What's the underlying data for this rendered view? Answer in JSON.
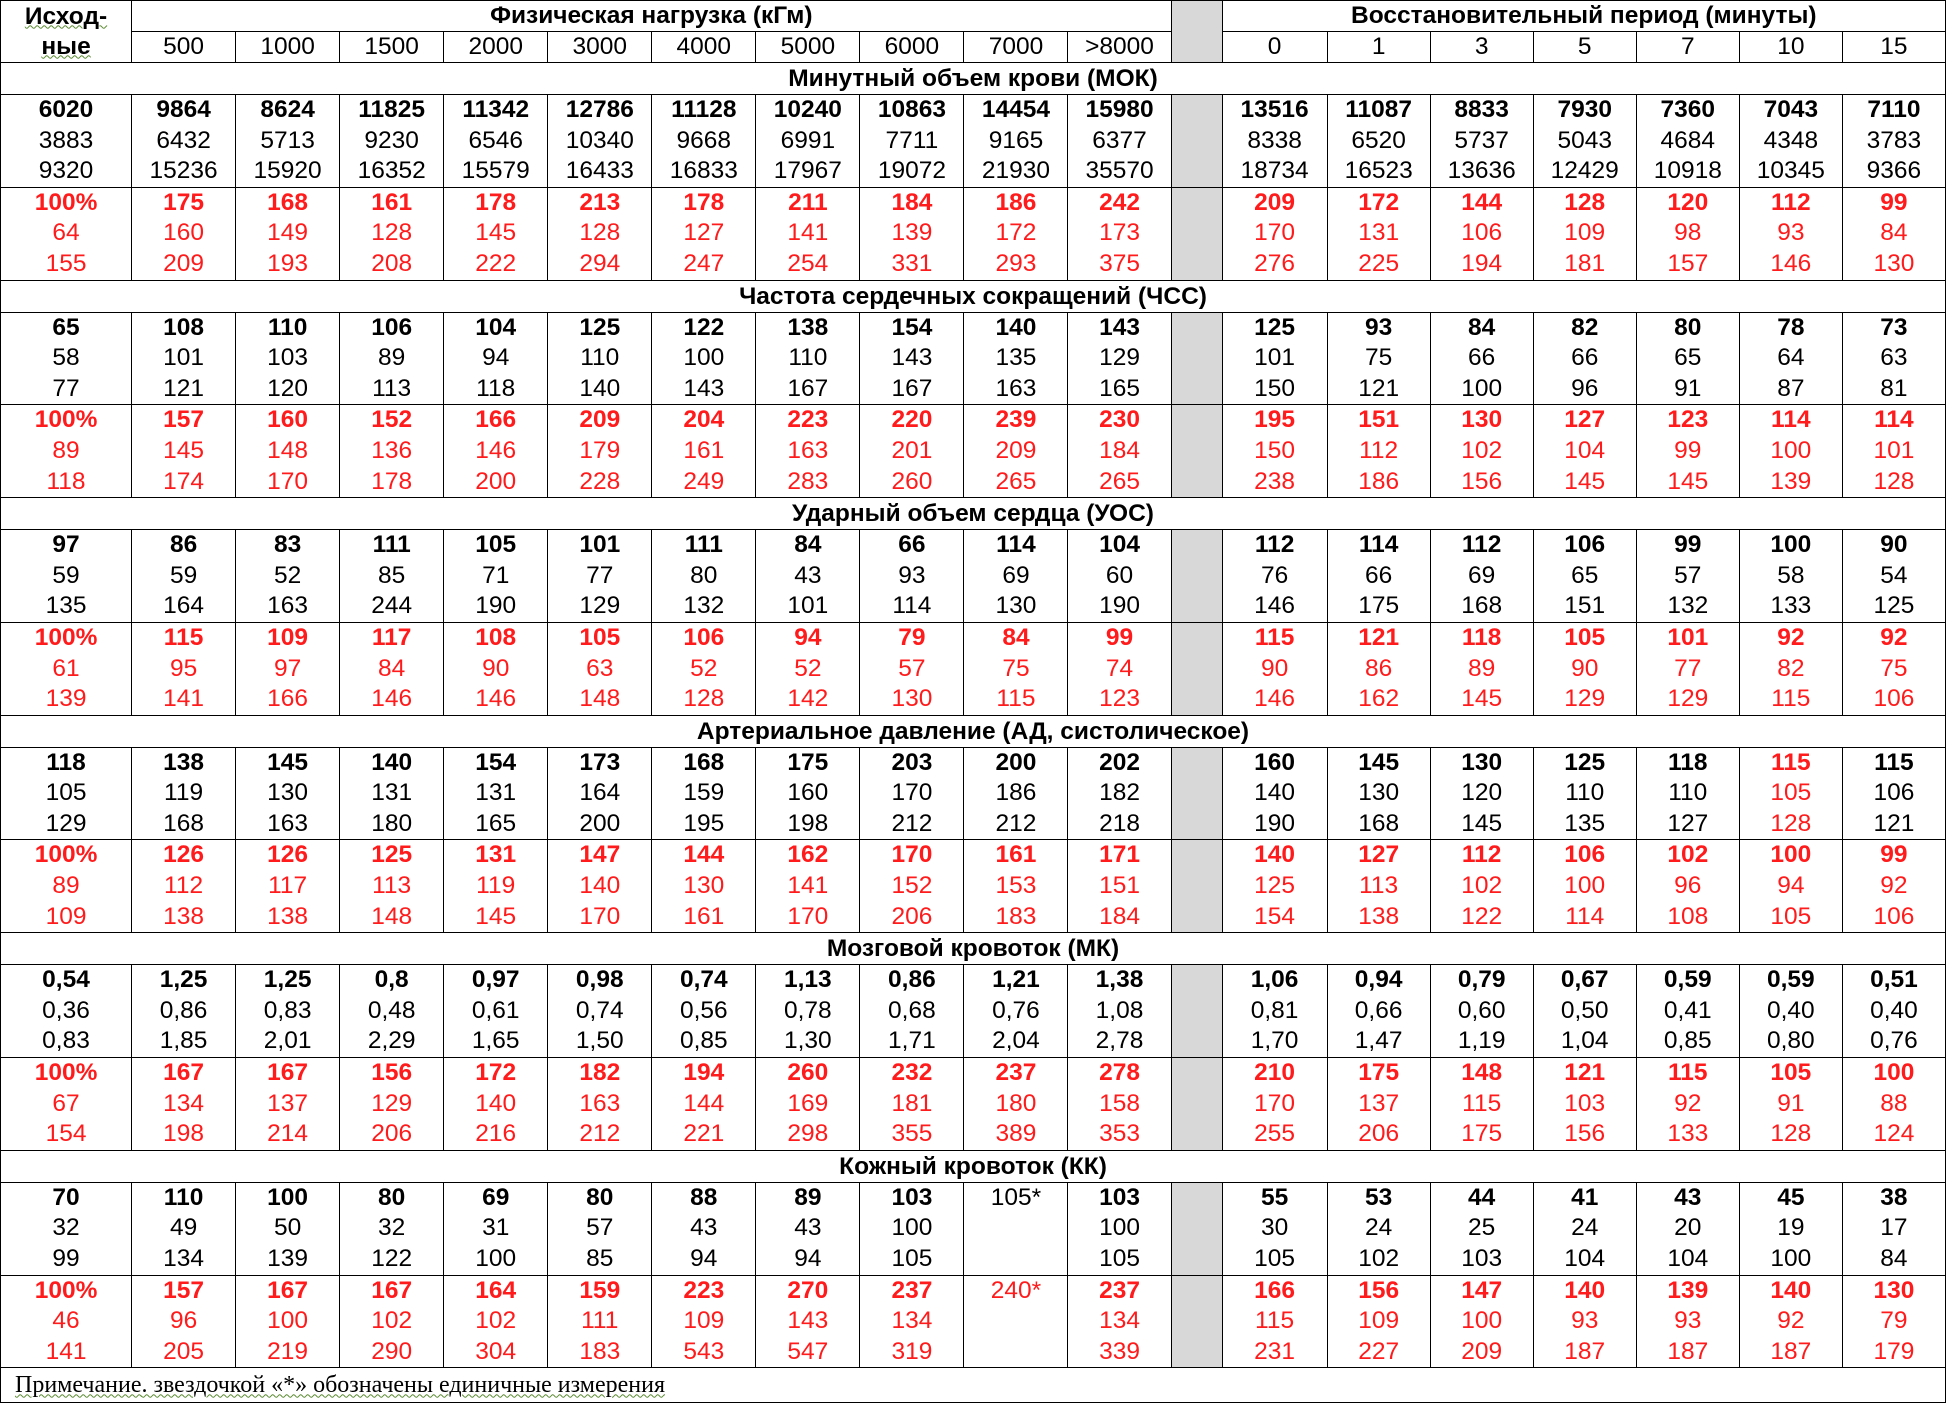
{
  "header": {
    "baseline_label": "Исход-ные",
    "baseline_label_line1": "Исход-",
    "baseline_label_line2": "ные",
    "load_title": "Физическая нагрузка (кГм)",
    "recovery_title": "Восстановительный период (минуты)",
    "load_columns": [
      "500",
      "1000",
      "1500",
      "2000",
      "3000",
      "4000",
      "5000",
      "6000",
      "7000",
      ">8000"
    ],
    "recovery_columns": [
      "0",
      "1",
      "3",
      "5",
      "7",
      "10",
      "15"
    ]
  },
  "sections": [
    {
      "title": "Минутный объем крови (МОК)",
      "rows": [
        [
          "6020",
          "9864",
          "8624",
          "11825",
          "11342",
          "12786",
          "11128",
          "10240",
          "10863",
          "14454",
          "15980",
          "13516",
          "11087",
          "8833",
          "7930",
          "7360",
          "7043",
          "7110"
        ],
        [
          "3883",
          "6432",
          "5713",
          "9230",
          "6546",
          "10340",
          "9668",
          "6991",
          "7711",
          "9165",
          "6377",
          "8338",
          "6520",
          "5737",
          "5043",
          "4684",
          "4348",
          "3783"
        ],
        [
          "9320",
          "15236",
          "15920",
          "16352",
          "15579",
          "16433",
          "16833",
          "17967",
          "19072",
          "21930",
          "35570",
          "18734",
          "16523",
          "13636",
          "12429",
          "10918",
          "10345",
          "9366"
        ],
        [
          "100%",
          "175",
          "168",
          "161",
          "178",
          "213",
          "178",
          "211",
          "184",
          "186",
          "242",
          "209",
          "172",
          "144",
          "128",
          "120",
          "112",
          "99"
        ],
        [
          "64",
          "160",
          "149",
          "128",
          "145",
          "128",
          "127",
          "141",
          "139",
          "172",
          "173",
          "170",
          "131",
          "106",
          "109",
          "98",
          "93",
          "84"
        ],
        [
          "155",
          "209",
          "193",
          "208",
          "222",
          "294",
          "247",
          "254",
          "331",
          "293",
          "375",
          "276",
          "225",
          "194",
          "181",
          "157",
          "146",
          "130"
        ]
      ]
    },
    {
      "title": "Частота сердечных сокращений (ЧСС)",
      "rows": [
        [
          "65",
          "108",
          "110",
          "106",
          "104",
          "125",
          "122",
          "138",
          "154",
          "140",
          "143",
          "125",
          "93",
          "84",
          "82",
          "80",
          "78",
          "73"
        ],
        [
          "58",
          "101",
          "103",
          "89",
          "94",
          "110",
          "100",
          "110",
          "143",
          "135",
          "129",
          "101",
          "75",
          "66",
          "66",
          "65",
          "64",
          "63"
        ],
        [
          "77",
          "121",
          "120",
          "113",
          "118",
          "140",
          "143",
          "167",
          "167",
          "163",
          "165",
          "150",
          "121",
          "100",
          "96",
          "91",
          "87",
          "81"
        ],
        [
          "100%",
          "157",
          "160",
          "152",
          "166",
          "209",
          "204",
          "223",
          "220",
          "239",
          "230",
          "195",
          "151",
          "130",
          "127",
          "123",
          "114",
          "114"
        ],
        [
          "89",
          "145",
          "148",
          "136",
          "146",
          "179",
          "161",
          "163",
          "201",
          "209",
          "184",
          "150",
          "112",
          "102",
          "104",
          "99",
          "100",
          "101"
        ],
        [
          "118",
          "174",
          "170",
          "178",
          "200",
          "228",
          "249",
          "283",
          "260",
          "265",
          "265",
          "238",
          "186",
          "156",
          "145",
          "145",
          "139",
          "128"
        ]
      ]
    },
    {
      "title": "Ударный объем сердца (УОС)",
      "rows": [
        [
          "97",
          "86",
          "83",
          "111",
          "105",
          "101",
          "111",
          "84",
          "66",
          "114",
          "104",
          "112",
          "114",
          "112",
          "106",
          "99",
          "100",
          "90"
        ],
        [
          "59",
          "59",
          "52",
          "85",
          "71",
          "77",
          "80",
          "43",
          "93",
          "69",
          "60",
          "76",
          "66",
          "69",
          "65",
          "57",
          "58",
          "54"
        ],
        [
          "135",
          "164",
          "163",
          "244",
          "190",
          "129",
          "132",
          "101",
          "114",
          "130",
          "190",
          "146",
          "175",
          "168",
          "151",
          "132",
          "133",
          "125"
        ],
        [
          "100%",
          "115",
          "109",
          "117",
          "108",
          "105",
          "106",
          "94",
          "79",
          "84",
          "99",
          "115",
          "121",
          "118",
          "105",
          "101",
          "92",
          "92"
        ],
        [
          "61",
          "95",
          "97",
          "84",
          "90",
          "63",
          "52",
          "52",
          "57",
          "75",
          "74",
          "90",
          "86",
          "89",
          "90",
          "77",
          "82",
          "75"
        ],
        [
          "139",
          "141",
          "166",
          "146",
          "146",
          "148",
          "128",
          "142",
          "130",
          "115",
          "123",
          "146",
          "162",
          "145",
          "129",
          "129",
          "115",
          "106"
        ]
      ]
    },
    {
      "title": "Артериальное давление (АД, систолическое)",
      "rows": [
        [
          "118",
          "138",
          "145",
          "140",
          "154",
          "173",
          "168",
          "175",
          "203",
          "200",
          "202",
          "160",
          "145",
          "130",
          "125",
          "118",
          "115",
          "115"
        ],
        [
          "105",
          "119",
          "130",
          "131",
          "131",
          "164",
          "159",
          "160",
          "170",
          "186",
          "182",
          "140",
          "130",
          "120",
          "110",
          "110",
          "105",
          "106"
        ],
        [
          "129",
          "168",
          "163",
          "180",
          "165",
          "200",
          "195",
          "198",
          "212",
          "212",
          "218",
          "190",
          "168",
          "145",
          "135",
          "127",
          "128",
          "121"
        ],
        [
          "100%",
          "126",
          "126",
          "125",
          "131",
          "147",
          "144",
          "162",
          "170",
          "161",
          "171",
          "140",
          "127",
          "112",
          "106",
          "102",
          "100",
          "99"
        ],
        [
          "89",
          "112",
          "117",
          "113",
          "119",
          "140",
          "130",
          "141",
          "152",
          "153",
          "151",
          "125",
          "113",
          "102",
          "100",
          "96",
          "94",
          "92"
        ],
        [
          "109",
          "138",
          "138",
          "148",
          "145",
          "170",
          "161",
          "170",
          "206",
          "183",
          "184",
          "154",
          "138",
          "122",
          "114",
          "108",
          "105",
          "106"
        ]
      ]
    },
    {
      "title": "Мозговой кровоток (МК)",
      "rows": [
        [
          "0,54",
          "1,25",
          "1,25",
          "0,8",
          "0,97",
          "0,98",
          "0,74",
          "1,13",
          "0,86",
          "1,21",
          "1,38",
          "1,06",
          "0,94",
          "0,79",
          "0,67",
          "0,59",
          "0,59",
          "0,51"
        ],
        [
          "0,36",
          "0,86",
          "0,83",
          "0,48",
          "0,61",
          "0,74",
          "0,56",
          "0,78",
          "0,68",
          "0,76",
          "1,08",
          "0,81",
          "0,66",
          "0,60",
          "0,50",
          "0,41",
          "0,40",
          "0,40"
        ],
        [
          "0,83",
          "1,85",
          "2,01",
          "2,29",
          "1,65",
          "1,50",
          "0,85",
          "1,30",
          "1,71",
          "2,04",
          "2,78",
          "1,70",
          "1,47",
          "1,19",
          "1,04",
          "0,85",
          "0,80",
          "0,76"
        ],
        [
          "100%",
          "167",
          "167",
          "156",
          "172",
          "182",
          "194",
          "260",
          "232",
          "237",
          "278",
          "210",
          "175",
          "148",
          "121",
          "115",
          "105",
          "100"
        ],
        [
          "67",
          "134",
          "137",
          "129",
          "140",
          "163",
          "144",
          "169",
          "181",
          "180",
          "158",
          "170",
          "137",
          "115",
          "103",
          "92",
          "91",
          "88"
        ],
        [
          "154",
          "198",
          "214",
          "206",
          "216",
          "212",
          "221",
          "298",
          "355",
          "389",
          "353",
          "255",
          "206",
          "175",
          "156",
          "133",
          "128",
          "124"
        ]
      ]
    },
    {
      "title": "Кожный кровоток (КК)",
      "rows": [
        [
          "70",
          "110",
          "100",
          "80",
          "69",
          "80",
          "88",
          "89",
          "103",
          "105*",
          "103",
          "55",
          "53",
          "44",
          "41",
          "43",
          "45",
          "38"
        ],
        [
          "32",
          "49",
          "50",
          "32",
          "31",
          "57",
          "43",
          "43",
          "100",
          "",
          "100",
          "30",
          "24",
          "25",
          "24",
          "20",
          "19",
          "17"
        ],
        [
          "99",
          "134",
          "139",
          "122",
          "100",
          "85",
          "94",
          "94",
          "105",
          "",
          "105",
          "105",
          "102",
          "103",
          "104",
          "104",
          "100",
          "84"
        ],
        [
          "100%",
          "157",
          "167",
          "167",
          "164",
          "159",
          "223",
          "270",
          "237",
          "240*",
          "237",
          "166",
          "156",
          "147",
          "140",
          "139",
          "140",
          "130"
        ],
        [
          "46",
          "96",
          "100",
          "102",
          "102",
          "111",
          "109",
          "143",
          "134",
          "",
          "134",
          "115",
          "109",
          "100",
          "93",
          "93",
          "92",
          "79"
        ],
        [
          "141",
          "205",
          "219",
          "290",
          "304",
          "183",
          "543",
          "547",
          "319",
          "",
          "339",
          "231",
          "227",
          "209",
          "187",
          "187",
          "187",
          "179"
        ]
      ]
    }
  ],
  "note": {
    "prefix": "Примечание",
    "text": ". звездочкой «*» обозначены единичные измерения"
  }
}
